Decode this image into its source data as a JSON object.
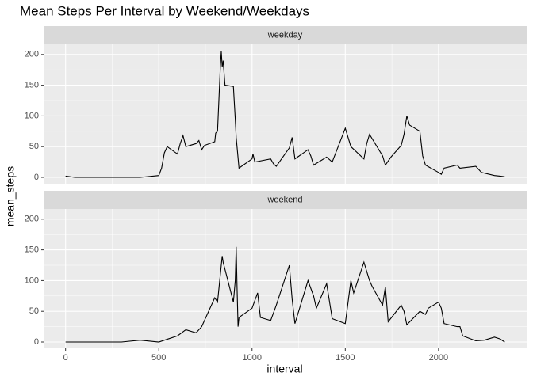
{
  "chart_data": {
    "type": "line",
    "title": "Mean Steps Per Interval by Weekend/Weekdays",
    "x_label": "interval",
    "y_label": "mean_steps",
    "color": "#000000",
    "grid": true,
    "xlim": [
      -117.75,
      2472.75
    ],
    "xticks": [
      0,
      500,
      1000,
      1500,
      2000
    ],
    "ylim": [
      -10.3,
      216.5
    ],
    "yticks": [
      0,
      50,
      100,
      150,
      200
    ],
    "panels": [
      {
        "strip": "weekday",
        "x": [
          0,
          50,
          100,
          200,
          300,
          400,
          500,
          515,
          530,
          545,
          600,
          615,
          630,
          645,
          700,
          715,
          730,
          745,
          800,
          805,
          815,
          830,
          835,
          840,
          845,
          850,
          855,
          900,
          910,
          915,
          930,
          1000,
          1005,
          1015,
          1100,
          1115,
          1130,
          1200,
          1215,
          1230,
          1300,
          1315,
          1330,
          1400,
          1430,
          1500,
          1510,
          1530,
          1600,
          1615,
          1630,
          1700,
          1715,
          1745,
          1800,
          1815,
          1830,
          1845,
          1900,
          1915,
          1930,
          2000,
          2015,
          2030,
          2100,
          2115,
          2200,
          2230,
          2300,
          2330,
          2355
        ],
        "values": [
          2,
          0,
          0,
          0,
          0,
          0,
          3,
          15,
          40,
          50,
          38,
          55,
          68,
          50,
          55,
          60,
          45,
          52,
          58,
          72,
          75,
          180,
          205,
          180,
          190,
          170,
          150,
          148,
          95,
          65,
          15,
          30,
          38,
          25,
          30,
          22,
          18,
          48,
          65,
          30,
          45,
          35,
          20,
          33,
          25,
          80,
          70,
          50,
          30,
          55,
          70,
          35,
          20,
          33,
          52,
          70,
          100,
          85,
          75,
          35,
          20,
          8,
          5,
          15,
          20,
          15,
          18,
          8,
          3,
          2,
          1
        ]
      },
      {
        "strip": "weekend",
        "x": [
          0,
          100,
          300,
          400,
          500,
          530,
          600,
          645,
          700,
          730,
          800,
          815,
          830,
          840,
          845,
          900,
          910,
          915,
          920,
          925,
          930,
          1000,
          1030,
          1045,
          1100,
          1130,
          1200,
          1215,
          1230,
          1300,
          1330,
          1345,
          1400,
          1430,
          1500,
          1530,
          1545,
          1600,
          1615,
          1630,
          1645,
          1700,
          1715,
          1730,
          1800,
          1815,
          1830,
          1900,
          1930,
          1945,
          2000,
          2015,
          2030,
          2100,
          2115,
          2130,
          2200,
          2245,
          2300,
          2330,
          2355
        ],
        "values": [
          0,
          0,
          0,
          3,
          0,
          3,
          10,
          20,
          15,
          25,
          72,
          65,
          110,
          140,
          130,
          65,
          100,
          155,
          85,
          25,
          40,
          55,
          80,
          40,
          35,
          60,
          125,
          70,
          30,
          100,
          75,
          55,
          95,
          38,
          30,
          100,
          80,
          130,
          115,
          100,
          90,
          60,
          90,
          33,
          60,
          50,
          28,
          50,
          45,
          55,
          65,
          55,
          30,
          25,
          25,
          10,
          2,
          3,
          8,
          5,
          0
        ]
      }
    ]
  }
}
